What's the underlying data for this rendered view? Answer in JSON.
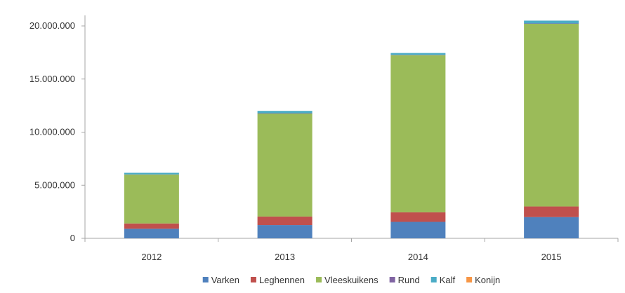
{
  "chart_data": {
    "type": "bar",
    "stacked": true,
    "categories": [
      "2012",
      "2013",
      "2014",
      "2015"
    ],
    "series": [
      {
        "name": "Varken",
        "color": "#4f81bd",
        "values": [
          900000,
          1250000,
          1550000,
          2000000
        ]
      },
      {
        "name": "Leghennen",
        "color": "#c0504d",
        "values": [
          500000,
          800000,
          900000,
          1000000
        ]
      },
      {
        "name": "Vleeskuikens",
        "color": "#9bbb59",
        "values": [
          4600000,
          9700000,
          14800000,
          17200000
        ]
      },
      {
        "name": "Rund",
        "color": "#8064a2",
        "values": [
          20000,
          30000,
          30000,
          30000
        ]
      },
      {
        "name": "Kalf",
        "color": "#4bacc6",
        "values": [
          150000,
          220000,
          170000,
          270000
        ]
      },
      {
        "name": "Konijn",
        "color": "#f79646",
        "values": [
          0,
          0,
          0,
          0
        ]
      }
    ],
    "y_ticks": [
      0,
      5000000,
      10000000,
      15000000,
      20000000
    ],
    "y_tick_labels": [
      "0",
      "5.000.000",
      "10.000.000",
      "15.000.000",
      "20.000.000"
    ],
    "ylim": [
      0,
      21000000
    ],
    "grid": false,
    "legend": "bottom",
    "title": "",
    "xlabel": "",
    "ylabel": ""
  }
}
